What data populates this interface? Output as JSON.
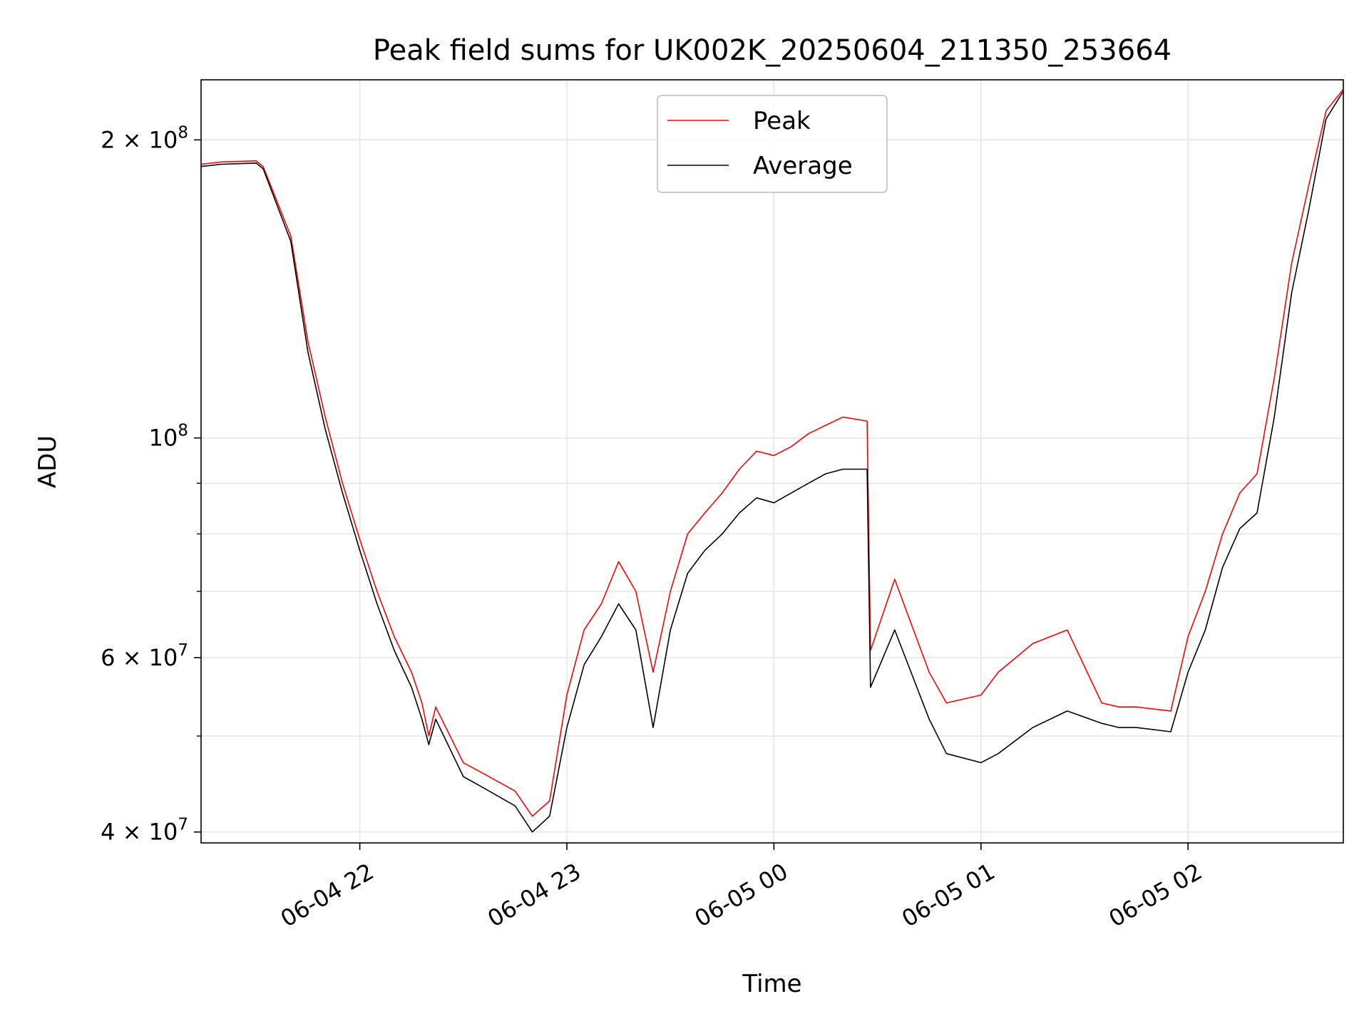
{
  "chart_data": {
    "type": "line",
    "title": "Peak field sums for UK002K_20250604_211350_253664",
    "xlabel": "Time",
    "ylabel": "ADU",
    "y_scale": "log",
    "xlim": [
      "2025-06-04 21:14",
      "2025-06-05 02:45"
    ],
    "ylim": [
      39000000,
      230000000
    ],
    "grid": true,
    "legend_position": "top-center",
    "x_ticks": [
      {
        "value": "2025-06-04 22:00",
        "label": "06-04 22"
      },
      {
        "value": "2025-06-04 23:00",
        "label": "06-04 23"
      },
      {
        "value": "2025-06-05 00:00",
        "label": "06-05 00"
      },
      {
        "value": "2025-06-05 01:00",
        "label": "06-05 01"
      },
      {
        "value": "2025-06-05 02:00",
        "label": "06-05 02"
      }
    ],
    "y_ticks": [
      {
        "value": 40000000,
        "label_base": "4 × 10",
        "label_exp": "7"
      },
      {
        "value": 60000000,
        "label_base": "6 × 10",
        "label_exp": "7"
      },
      {
        "value": 100000000,
        "label_base": "10",
        "label_exp": "8"
      },
      {
        "value": 200000000,
        "label_base": "2 × 10",
        "label_exp": "8"
      }
    ],
    "series": [
      {
        "name": "Peak",
        "color": "#ff0000",
        "x": [
          "2025-06-04 21:14",
          "2025-06-04 21:20",
          "2025-06-04 21:30",
          "2025-06-04 21:32",
          "2025-06-04 21:40",
          "2025-06-04 21:45",
          "2025-06-04 21:50",
          "2025-06-04 21:55",
          "2025-06-04 22:00",
          "2025-06-04 22:05",
          "2025-06-04 22:10",
          "2025-06-04 22:15",
          "2025-06-04 22:18",
          "2025-06-04 22:20",
          "2025-06-04 22:22",
          "2025-06-04 22:30",
          "2025-06-04 22:35",
          "2025-06-04 22:45",
          "2025-06-04 22:50",
          "2025-06-04 22:55",
          "2025-06-04 23:00",
          "2025-06-04 23:05",
          "2025-06-04 23:10",
          "2025-06-04 23:15",
          "2025-06-04 23:20",
          "2025-06-04 23:25",
          "2025-06-04 23:30",
          "2025-06-04 23:35",
          "2025-06-04 23:40",
          "2025-06-04 23:45",
          "2025-06-04 23:50",
          "2025-06-04 23:55",
          "2025-06-05 00:00",
          "2025-06-05 00:05",
          "2025-06-05 00:10",
          "2025-06-05 00:15",
          "2025-06-05 00:20",
          "2025-06-05 00:27",
          "2025-06-05 00:28",
          "2025-06-05 00:35",
          "2025-06-05 00:45",
          "2025-06-05 00:50",
          "2025-06-05 01:00",
          "2025-06-05 01:05",
          "2025-06-05 01:15",
          "2025-06-05 01:25",
          "2025-06-05 01:35",
          "2025-06-05 01:40",
          "2025-06-05 01:45",
          "2025-06-05 01:55",
          "2025-06-05 02:00",
          "2025-06-05 02:05",
          "2025-06-05 02:10",
          "2025-06-05 02:15",
          "2025-06-05 02:20",
          "2025-06-05 02:25",
          "2025-06-05 02:30",
          "2025-06-05 02:35",
          "2025-06-05 02:40",
          "2025-06-05 02:45"
        ],
        "y": [
          189000000,
          190000000,
          190500000,
          188000000,
          160000000,
          125000000,
          105000000,
          90000000,
          79000000,
          70000000,
          63000000,
          58000000,
          54000000,
          50000000,
          53500000,
          47000000,
          46000000,
          44000000,
          41500000,
          43000000,
          55000000,
          64000000,
          68000000,
          75000000,
          70000000,
          58000000,
          70000000,
          80000000,
          84000000,
          88000000,
          93000000,
          97000000,
          96000000,
          98000000,
          101000000,
          103000000,
          105000000,
          104000000,
          61000000,
          72000000,
          58000000,
          54000000,
          55000000,
          58000000,
          62000000,
          64000000,
          54000000,
          53500000,
          53500000,
          53000000,
          63000000,
          70000000,
          80000000,
          88000000,
          92000000,
          115000000,
          150000000,
          180000000,
          214000000,
          225000000
        ]
      },
      {
        "name": "Average",
        "color": "#000000",
        "x": [
          "2025-06-04 21:14",
          "2025-06-04 21:20",
          "2025-06-04 21:30",
          "2025-06-04 21:32",
          "2025-06-04 21:40",
          "2025-06-04 21:45",
          "2025-06-04 21:50",
          "2025-06-04 21:55",
          "2025-06-04 22:00",
          "2025-06-04 22:05",
          "2025-06-04 22:10",
          "2025-06-04 22:15",
          "2025-06-04 22:18",
          "2025-06-04 22:20",
          "2025-06-04 22:22",
          "2025-06-04 22:30",
          "2025-06-04 22:35",
          "2025-06-04 22:45",
          "2025-06-04 22:50",
          "2025-06-04 22:55",
          "2025-06-04 23:00",
          "2025-06-04 23:05",
          "2025-06-04 23:10",
          "2025-06-04 23:15",
          "2025-06-04 23:20",
          "2025-06-04 23:25",
          "2025-06-04 23:30",
          "2025-06-04 23:35",
          "2025-06-04 23:40",
          "2025-06-04 23:45",
          "2025-06-04 23:50",
          "2025-06-04 23:55",
          "2025-06-05 00:00",
          "2025-06-05 00:05",
          "2025-06-05 00:10",
          "2025-06-05 00:15",
          "2025-06-05 00:20",
          "2025-06-05 00:27",
          "2025-06-05 00:28",
          "2025-06-05 00:35",
          "2025-06-05 00:45",
          "2025-06-05 00:50",
          "2025-06-05 01:00",
          "2025-06-05 01:05",
          "2025-06-05 01:15",
          "2025-06-05 01:25",
          "2025-06-05 01:35",
          "2025-06-05 01:40",
          "2025-06-05 01:45",
          "2025-06-05 01:55",
          "2025-06-05 02:00",
          "2025-06-05 02:05",
          "2025-06-05 02:10",
          "2025-06-05 02:15",
          "2025-06-05 02:20",
          "2025-06-05 02:25",
          "2025-06-05 02:30",
          "2025-06-05 02:35",
          "2025-06-05 02:40",
          "2025-06-05 02:45"
        ],
        "y": [
          188000000,
          189000000,
          189500000,
          187000000,
          158000000,
          122000000,
          102000000,
          88000000,
          77000000,
          68000000,
          61000000,
          56000000,
          52000000,
          49000000,
          52000000,
          45500000,
          44500000,
          42500000,
          40000000,
          41500000,
          51000000,
          59000000,
          63000000,
          68000000,
          64000000,
          51000000,
          64000000,
          73000000,
          77000000,
          80000000,
          84000000,
          87000000,
          86000000,
          88000000,
          90000000,
          92000000,
          93000000,
          93000000,
          56000000,
          64000000,
          52000000,
          48000000,
          47000000,
          48000000,
          51000000,
          53000000,
          51500000,
          51000000,
          51000000,
          50500000,
          58000000,
          64000000,
          74000000,
          81000000,
          84000000,
          105000000,
          140000000,
          170000000,
          210000000,
          224000000
        ]
      }
    ]
  }
}
